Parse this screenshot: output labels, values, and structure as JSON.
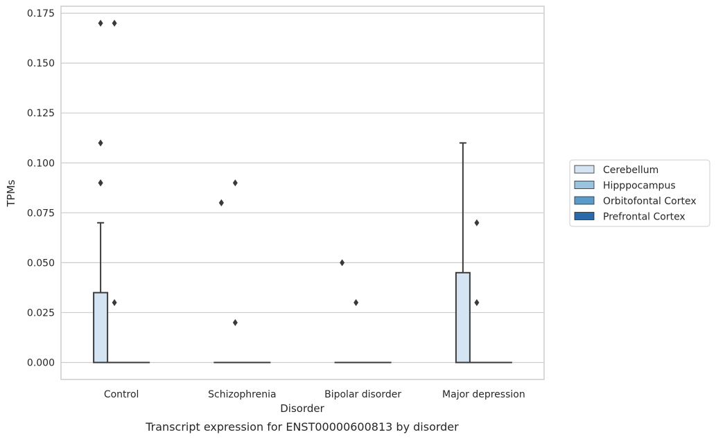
{
  "chart_data": {
    "type": "box",
    "xlabel": "Disorder",
    "ylabel": "TPMs",
    "caption": "Transcript expression for ENST00000600813 by disorder",
    "ylim": [
      -0.0085,
      0.1785
    ],
    "yticks": [
      "0.000",
      "0.025",
      "0.050",
      "0.075",
      "0.100",
      "0.125",
      "0.150",
      "0.175"
    ],
    "grid": "horizontal",
    "legend_position": "right",
    "categories": [
      "Control",
      "Schizophrenia",
      "Bipolar disorder",
      "Major depression"
    ],
    "series": [
      {
        "name": "Cerebellum",
        "color": "#d4e4f3",
        "boxes": [
          {
            "q1": 0.0,
            "median": 0.0,
            "q3": 0.035,
            "whisker_low": 0.0,
            "whisker_high": 0.07,
            "outliers": [
              0.09,
              0.09,
              0.11,
              0.17
            ]
          },
          {
            "q1": 0.0,
            "median": 0.0,
            "q3": 0.0,
            "whisker_low": 0.0,
            "whisker_high": 0.0,
            "outliers": [
              0.08,
              0.08
            ]
          },
          {
            "q1": 0.0,
            "median": 0.0,
            "q3": 0.0,
            "whisker_low": 0.0,
            "whisker_high": 0.0,
            "outliers": [
              0.05
            ]
          },
          {
            "q1": 0.0,
            "median": 0.0,
            "q3": 0.045,
            "whisker_low": 0.0,
            "whisker_high": 0.11,
            "outliers": []
          }
        ]
      },
      {
        "name": "Hipppocampus",
        "color": "#9ac3df",
        "boxes": [
          {
            "q1": 0.0,
            "median": 0.0,
            "q3": 0.0,
            "whisker_low": 0.0,
            "whisker_high": 0.0,
            "outliers": [
              0.03,
              0.17
            ]
          },
          {
            "q1": 0.0,
            "median": 0.0,
            "q3": 0.0,
            "whisker_low": 0.0,
            "whisker_high": 0.0,
            "outliers": [
              0.02,
              0.09
            ]
          },
          {
            "q1": 0.0,
            "median": 0.0,
            "q3": 0.0,
            "whisker_low": 0.0,
            "whisker_high": 0.0,
            "outliers": [
              0.03
            ]
          },
          {
            "q1": 0.0,
            "median": 0.0,
            "q3": 0.0,
            "whisker_low": 0.0,
            "whisker_high": 0.0,
            "outliers": [
              0.03,
              0.07
            ]
          }
        ]
      },
      {
        "name": "Orbitofontal Cortex",
        "color": "#5a9bc9",
        "boxes": [
          {
            "q1": 0.0,
            "median": 0.0,
            "q3": 0.0,
            "whisker_low": 0.0,
            "whisker_high": 0.0,
            "outliers": []
          },
          {
            "q1": 0.0,
            "median": 0.0,
            "q3": 0.0,
            "whisker_low": 0.0,
            "whisker_high": 0.0,
            "outliers": []
          },
          {
            "q1": 0.0,
            "median": 0.0,
            "q3": 0.0,
            "whisker_low": 0.0,
            "whisker_high": 0.0,
            "outliers": []
          },
          {
            "q1": 0.0,
            "median": 0.0,
            "q3": 0.0,
            "whisker_low": 0.0,
            "whisker_high": 0.0,
            "outliers": []
          }
        ]
      },
      {
        "name": "Prefrontal Cortex",
        "color": "#2a6aaa",
        "boxes": [
          {
            "q1": 0.0,
            "median": 0.0,
            "q3": 0.0,
            "whisker_low": 0.0,
            "whisker_high": 0.0,
            "outliers": []
          },
          {
            "q1": 0.0,
            "median": 0.0,
            "q3": 0.0,
            "whisker_low": 0.0,
            "whisker_high": 0.0,
            "outliers": []
          },
          {
            "q1": 0.0,
            "median": 0.0,
            "q3": 0.0,
            "whisker_low": 0.0,
            "whisker_high": 0.0,
            "outliers": []
          },
          {
            "q1": 0.0,
            "median": 0.0,
            "q3": 0.0,
            "whisker_low": 0.0,
            "whisker_high": 0.0,
            "outliers": []
          }
        ]
      }
    ]
  }
}
